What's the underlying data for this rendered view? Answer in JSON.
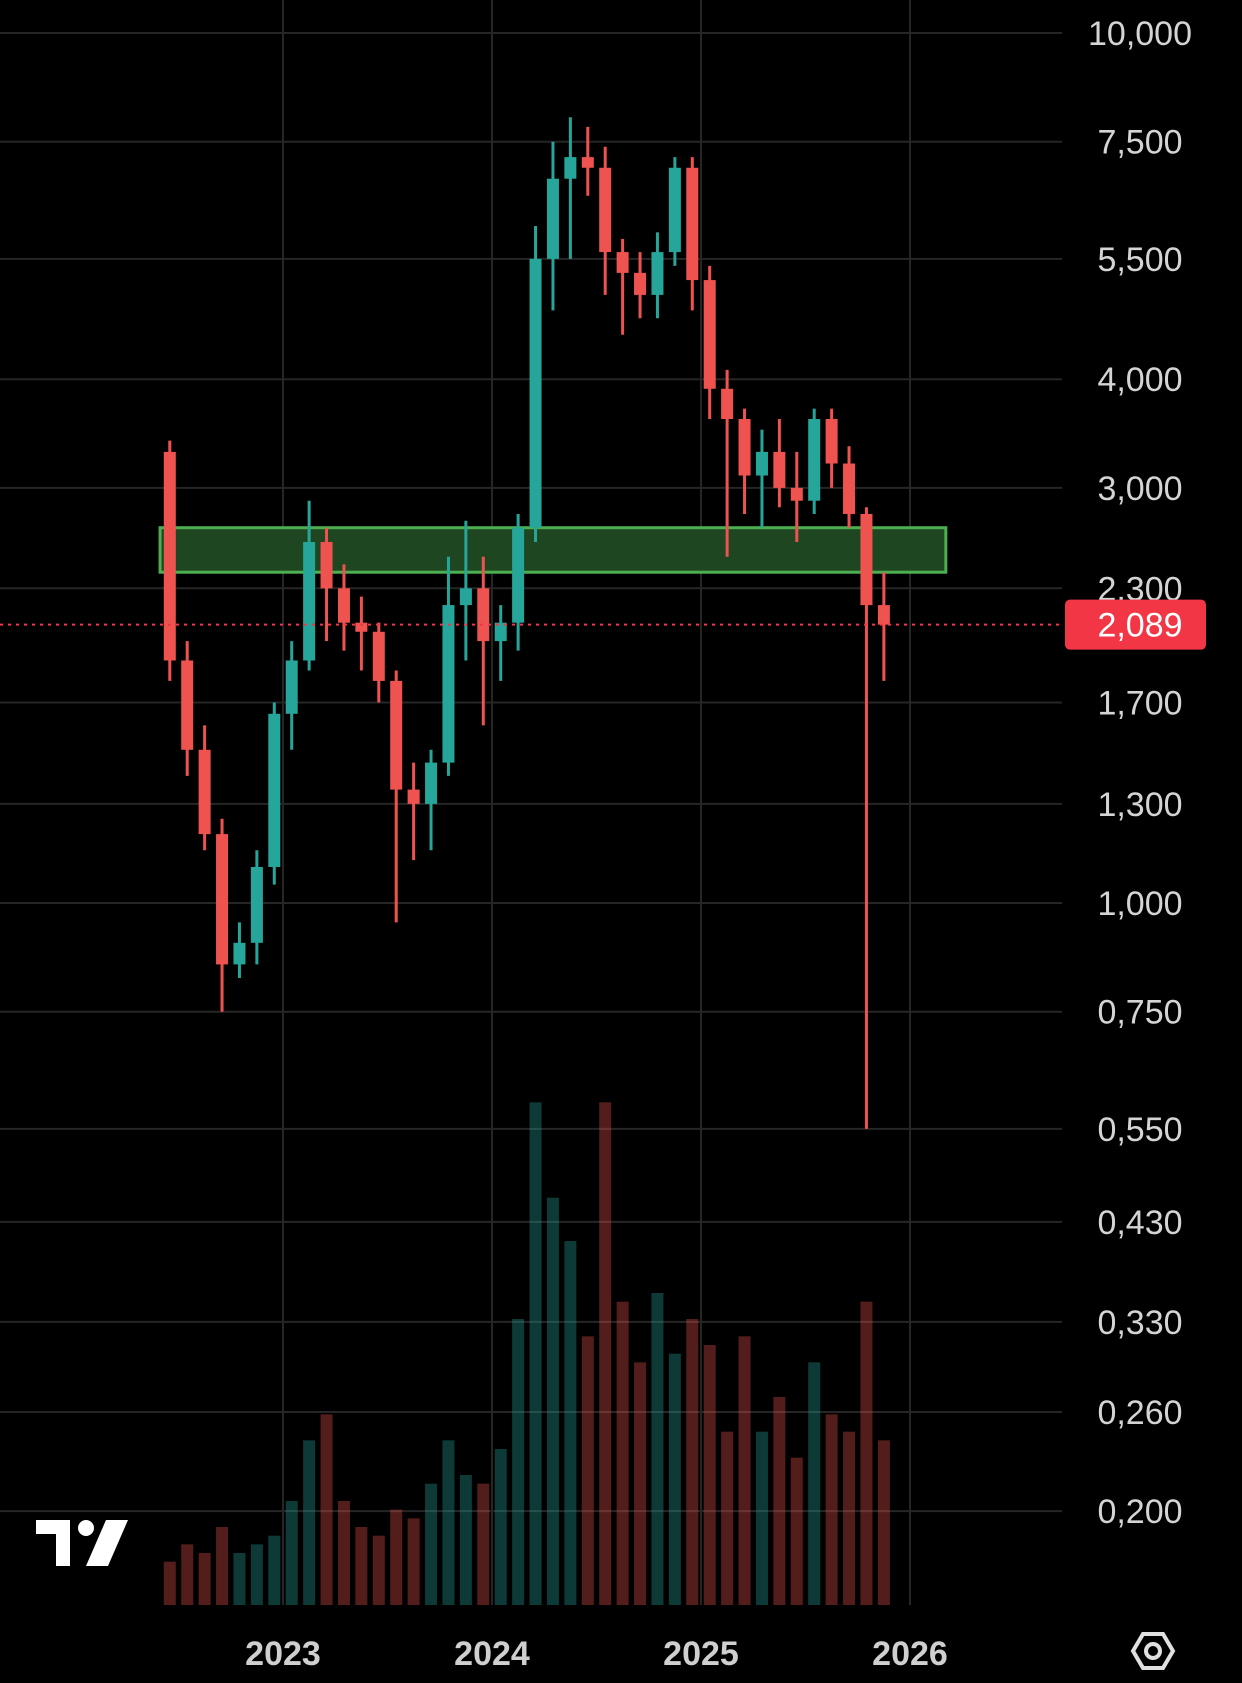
{
  "chart_data": {
    "type": "candlestick",
    "scale": "log",
    "y_ticks": [
      "10,000",
      "7,500",
      "5,500",
      "4,000",
      "3,000",
      "2,300",
      "1,700",
      "1,300",
      "1,000",
      "0,750",
      "0,550",
      "0,430",
      "0,330",
      "0,260",
      "0,200"
    ],
    "y_tick_values": [
      10,
      7.5,
      5.5,
      4,
      3,
      2.3,
      1.7,
      1.3,
      1,
      0.75,
      0.55,
      0.43,
      0.33,
      0.26,
      0.2
    ],
    "x_ticks": [
      "2023",
      "2024",
      "2025",
      "2026"
    ],
    "last_price": {
      "label": "2,089",
      "value": 2.089
    },
    "zone": {
      "low": 2.4,
      "high": 2.7,
      "from": "2022-06",
      "to": "2026-03"
    },
    "series": [
      {
        "name": "price",
        "points": [
          [
            "2022-06",
            3.3,
            3.4,
            1.8,
            1.9
          ],
          [
            "2022-07",
            1.9,
            2.0,
            1.4,
            1.5
          ],
          [
            "2022-08",
            1.5,
            1.6,
            1.15,
            1.2
          ],
          [
            "2022-09",
            1.2,
            1.25,
            0.75,
            0.85
          ],
          [
            "2022-10",
            0.85,
            0.95,
            0.82,
            0.9
          ],
          [
            "2022-11",
            0.9,
            1.15,
            0.85,
            1.1
          ],
          [
            "2022-12",
            1.1,
            1.7,
            1.05,
            1.65
          ],
          [
            "2023-01",
            1.65,
            2.0,
            1.5,
            1.9
          ],
          [
            "2023-02",
            1.9,
            2.9,
            1.85,
            2.6
          ],
          [
            "2023-03",
            2.6,
            2.7,
            2.0,
            2.3
          ],
          [
            "2023-04",
            2.3,
            2.45,
            1.95,
            2.1
          ],
          [
            "2023-05",
            2.1,
            2.25,
            1.85,
            2.05
          ],
          [
            "2023-06",
            2.05,
            2.1,
            1.7,
            1.8
          ],
          [
            "2023-07",
            1.8,
            1.85,
            0.95,
            1.35
          ],
          [
            "2023-08",
            1.35,
            1.45,
            1.12,
            1.3
          ],
          [
            "2023-09",
            1.3,
            1.5,
            1.15,
            1.45
          ],
          [
            "2023-10",
            1.45,
            2.5,
            1.4,
            2.2
          ],
          [
            "2023-11",
            2.2,
            2.75,
            1.9,
            2.3
          ],
          [
            "2023-12",
            2.3,
            2.5,
            1.6,
            2.0
          ],
          [
            "2024-01",
            2.0,
            2.2,
            1.8,
            2.1
          ],
          [
            "2024-02",
            2.1,
            2.8,
            1.95,
            2.7
          ],
          [
            "2024-03",
            2.7,
            6.0,
            2.6,
            5.5
          ],
          [
            "2024-04",
            5.5,
            7.5,
            4.8,
            6.8
          ],
          [
            "2024-05",
            6.8,
            8.0,
            5.5,
            7.2
          ],
          [
            "2024-06",
            7.2,
            7.8,
            6.5,
            7.0
          ],
          [
            "2024-07",
            7.0,
            7.4,
            5.0,
            5.6
          ],
          [
            "2024-08",
            5.6,
            5.8,
            4.5,
            5.3
          ],
          [
            "2024-09",
            5.3,
            5.6,
            4.7,
            5.0
          ],
          [
            "2024-10",
            5.0,
            5.9,
            4.7,
            5.6
          ],
          [
            "2024-11",
            5.6,
            7.2,
            5.4,
            7.0
          ],
          [
            "2024-12",
            7.0,
            7.2,
            4.8,
            5.2
          ],
          [
            "2025-01",
            5.2,
            5.4,
            3.6,
            3.9
          ],
          [
            "2025-02",
            3.9,
            4.1,
            2.5,
            3.6
          ],
          [
            "2025-03",
            3.6,
            3.7,
            2.8,
            3.1
          ],
          [
            "2025-04",
            3.1,
            3.5,
            2.7,
            3.3
          ],
          [
            "2025-05",
            3.3,
            3.6,
            2.85,
            3.0
          ],
          [
            "2025-06",
            3.0,
            3.3,
            2.6,
            2.9
          ],
          [
            "2025-07",
            2.9,
            3.7,
            2.8,
            3.6
          ],
          [
            "2025-08",
            3.6,
            3.7,
            3.0,
            3.2
          ],
          [
            "2025-09",
            3.2,
            3.35,
            2.7,
            2.8
          ],
          [
            "2025-10",
            2.8,
            2.85,
            0.55,
            2.2
          ],
          [
            "2025-11",
            2.2,
            2.4,
            1.8,
            2.089
          ]
        ]
      },
      {
        "name": "volume",
        "values": [
          0.05,
          0.07,
          0.06,
          0.09,
          0.06,
          0.07,
          0.08,
          0.12,
          0.19,
          0.22,
          0.12,
          0.09,
          0.08,
          0.11,
          0.1,
          0.14,
          0.19,
          0.15,
          0.14,
          0.18,
          0.33,
          0.58,
          0.47,
          0.42,
          0.31,
          0.58,
          0.35,
          0.28,
          0.36,
          0.29,
          0.33,
          0.3,
          0.2,
          0.31,
          0.2,
          0.24,
          0.17,
          0.28,
          0.22,
          0.2,
          0.35,
          0.19
        ]
      }
    ]
  },
  "colors": {
    "up": "#26a69a",
    "down": "#ef5350",
    "zone_fill": "#1e4620",
    "zone_border": "#4caf50",
    "grid": "#262626",
    "price_line": "#f23645",
    "price_tag": "#f23645"
  },
  "icons": {
    "logo": "tradingview-logo-icon",
    "settings": "settings-hexagon-icon"
  }
}
